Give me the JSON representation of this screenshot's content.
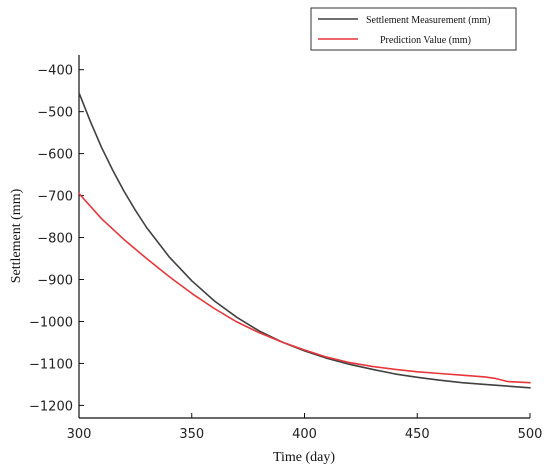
{
  "chart_data": {
    "type": "line",
    "title": "",
    "xlabel": "Time  (day)",
    "ylabel": "Settlement (mm)",
    "xlim": [
      300,
      500
    ],
    "ylim": [
      -1230,
      -365
    ],
    "x_ticks": [
      300,
      350,
      400,
      450,
      500
    ],
    "y_ticks": [
      -400,
      -500,
      -600,
      -700,
      -800,
      -900,
      -1000,
      -1100,
      -1200
    ],
    "x_tick_labels": [
      "300",
      "350",
      "400",
      "450",
      "500"
    ],
    "y_tick_labels": [
      "−400",
      "−500",
      "−600",
      "−700",
      "−800",
      "−900",
      "−1000",
      "−1100",
      "−1200"
    ],
    "grid": false,
    "legend_position": "top-right",
    "series": [
      {
        "name": "Settlement Measurement (mm)",
        "color": "#404040",
        "x": [
          300,
          305,
          310,
          315,
          320,
          325,
          330,
          340,
          350,
          360,
          370,
          380,
          390,
          400,
          410,
          420,
          430,
          440,
          450,
          460,
          470,
          480,
          490,
          500
        ],
        "y": [
          -455,
          -523,
          -585,
          -640,
          -690,
          -735,
          -776,
          -846,
          -903,
          -951,
          -990,
          -1023,
          -1049,
          -1070,
          -1088,
          -1102,
          -1114,
          -1125,
          -1133,
          -1140,
          -1146,
          -1150,
          -1154,
          -1158
        ]
      },
      {
        "name": "Prediction Value (mm)",
        "color": "#e8363a",
        "x": [
          300,
          310,
          320,
          330,
          340,
          350,
          360,
          370,
          380,
          390,
          400,
          410,
          420,
          430,
          440,
          450,
          460,
          470,
          480,
          485,
          490,
          500
        ],
        "y": [
          -695,
          -755,
          -805,
          -850,
          -893,
          -933,
          -969,
          -1001,
          -1027,
          -1049,
          -1068,
          -1085,
          -1098,
          -1107,
          -1114,
          -1120,
          -1124,
          -1128,
          -1132,
          -1136,
          -1143,
          -1146
        ]
      }
    ]
  }
}
